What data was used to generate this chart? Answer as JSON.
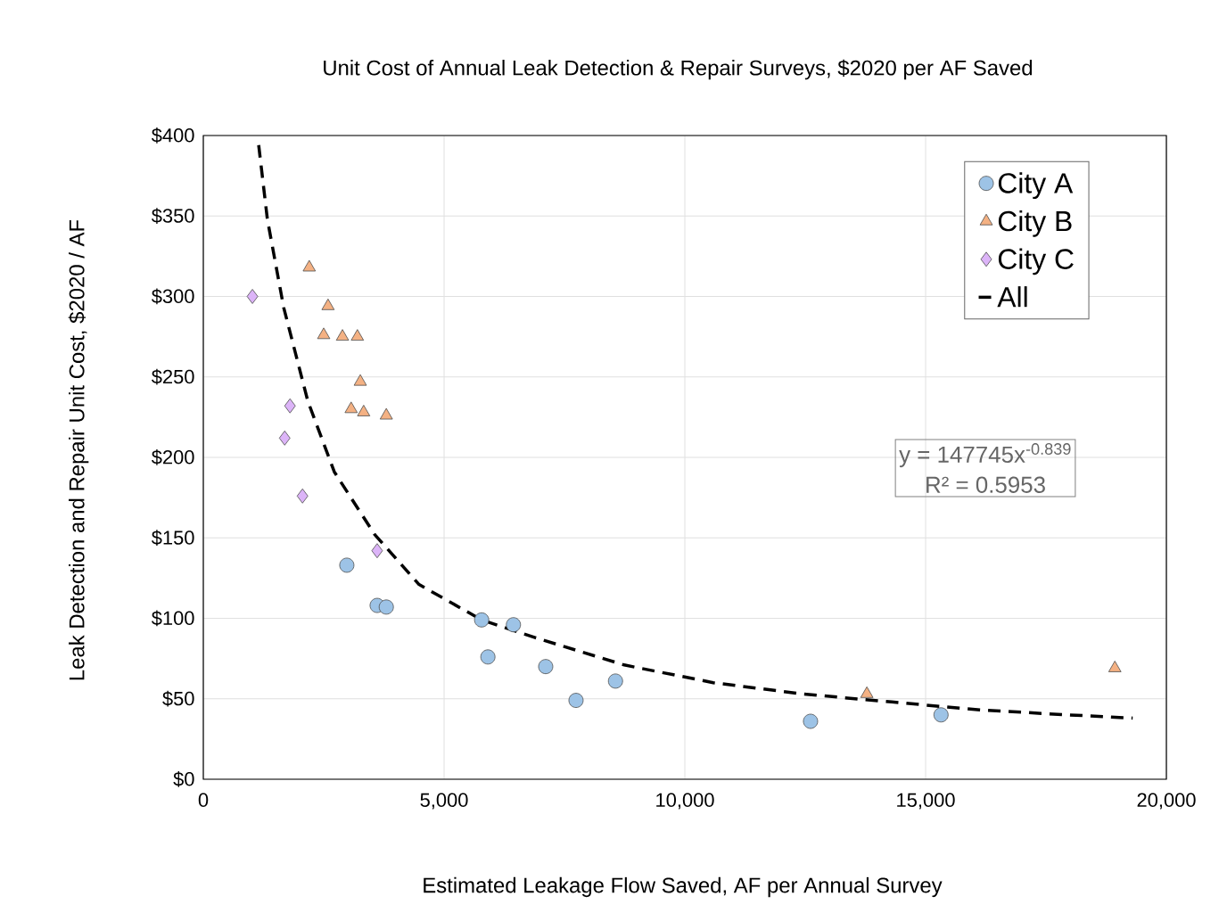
{
  "chart_data": {
    "type": "scatter",
    "title": "Unit Cost of Annual Leak Detection & Repair Surveys, $2020 per AF Saved",
    "xlabel": "Estimated Leakage Flow Saved, AF per Annual Survey",
    "ylabel": "Leak Detection and Repair Unit Cost, $2020 / AF",
    "xlim": [
      0,
      20000
    ],
    "ylim": [
      0,
      400
    ],
    "xticks": [
      {
        "value": 0,
        "label": "0"
      },
      {
        "value": 5000,
        "label": "5,000"
      },
      {
        "value": 10000,
        "label": "10,000"
      },
      {
        "value": 15000,
        "label": "15,000"
      },
      {
        "value": 20000,
        "label": "20,000"
      }
    ],
    "yticks": [
      {
        "value": 0,
        "label": "$0"
      },
      {
        "value": 50,
        "label": "$50"
      },
      {
        "value": 100,
        "label": "$100"
      },
      {
        "value": 150,
        "label": "$150"
      },
      {
        "value": 200,
        "label": "$200"
      },
      {
        "value": 250,
        "label": "$250"
      },
      {
        "value": 300,
        "label": "$300"
      },
      {
        "value": 350,
        "label": "$350"
      },
      {
        "value": 400,
        "label": "$400"
      }
    ],
    "grid": true,
    "legend": "top right",
    "annotations": [
      "y = 147745x$^{-0.839}$",
      "R² = 0.5953"
    ],
    "series": [
      {
        "name": "City A",
        "color": "#9dc3e6",
        "marker": "circle",
        "x": [
          2980,
          3610,
          3800,
          5780,
          6440,
          5910,
          7110,
          7740,
          8560,
          12610,
          15320
        ],
        "values": [
          133,
          108,
          107,
          99,
          96,
          76,
          70,
          49,
          61,
          36,
          40
        ]
      },
      {
        "name": "City B",
        "color": "#f4b183",
        "marker": "triangle",
        "x": [
          2200,
          2590,
          2500,
          2890,
          3200,
          3260,
          3070,
          3330,
          3800,
          13780,
          18930
        ],
        "values": [
          318,
          294,
          276,
          275,
          275,
          247,
          230,
          228,
          226,
          53,
          69
        ]
      },
      {
        "name": "City C",
        "color": "#dcb4f8",
        "marker": "diamond",
        "x": [
          1020,
          1800,
          1690,
          2060,
          3610
        ],
        "values": [
          300,
          232,
          212,
          176,
          142
        ]
      },
      {
        "name": "All",
        "type": "line",
        "color": "#000000",
        "marker": "none",
        "line_style": "dashed",
        "x": [
          1150,
          1330,
          1670,
          2170,
          2720,
          3560,
          4480,
          5780,
          6890,
          8740,
          10590,
          12440,
          14300,
          16150,
          17960,
          19300
        ],
        "values": [
          394,
          348,
          293,
          235,
          191,
          152,
          121,
          99,
          88,
          71,
          60,
          53,
          48,
          43,
          40,
          38
        ]
      }
    ]
  }
}
